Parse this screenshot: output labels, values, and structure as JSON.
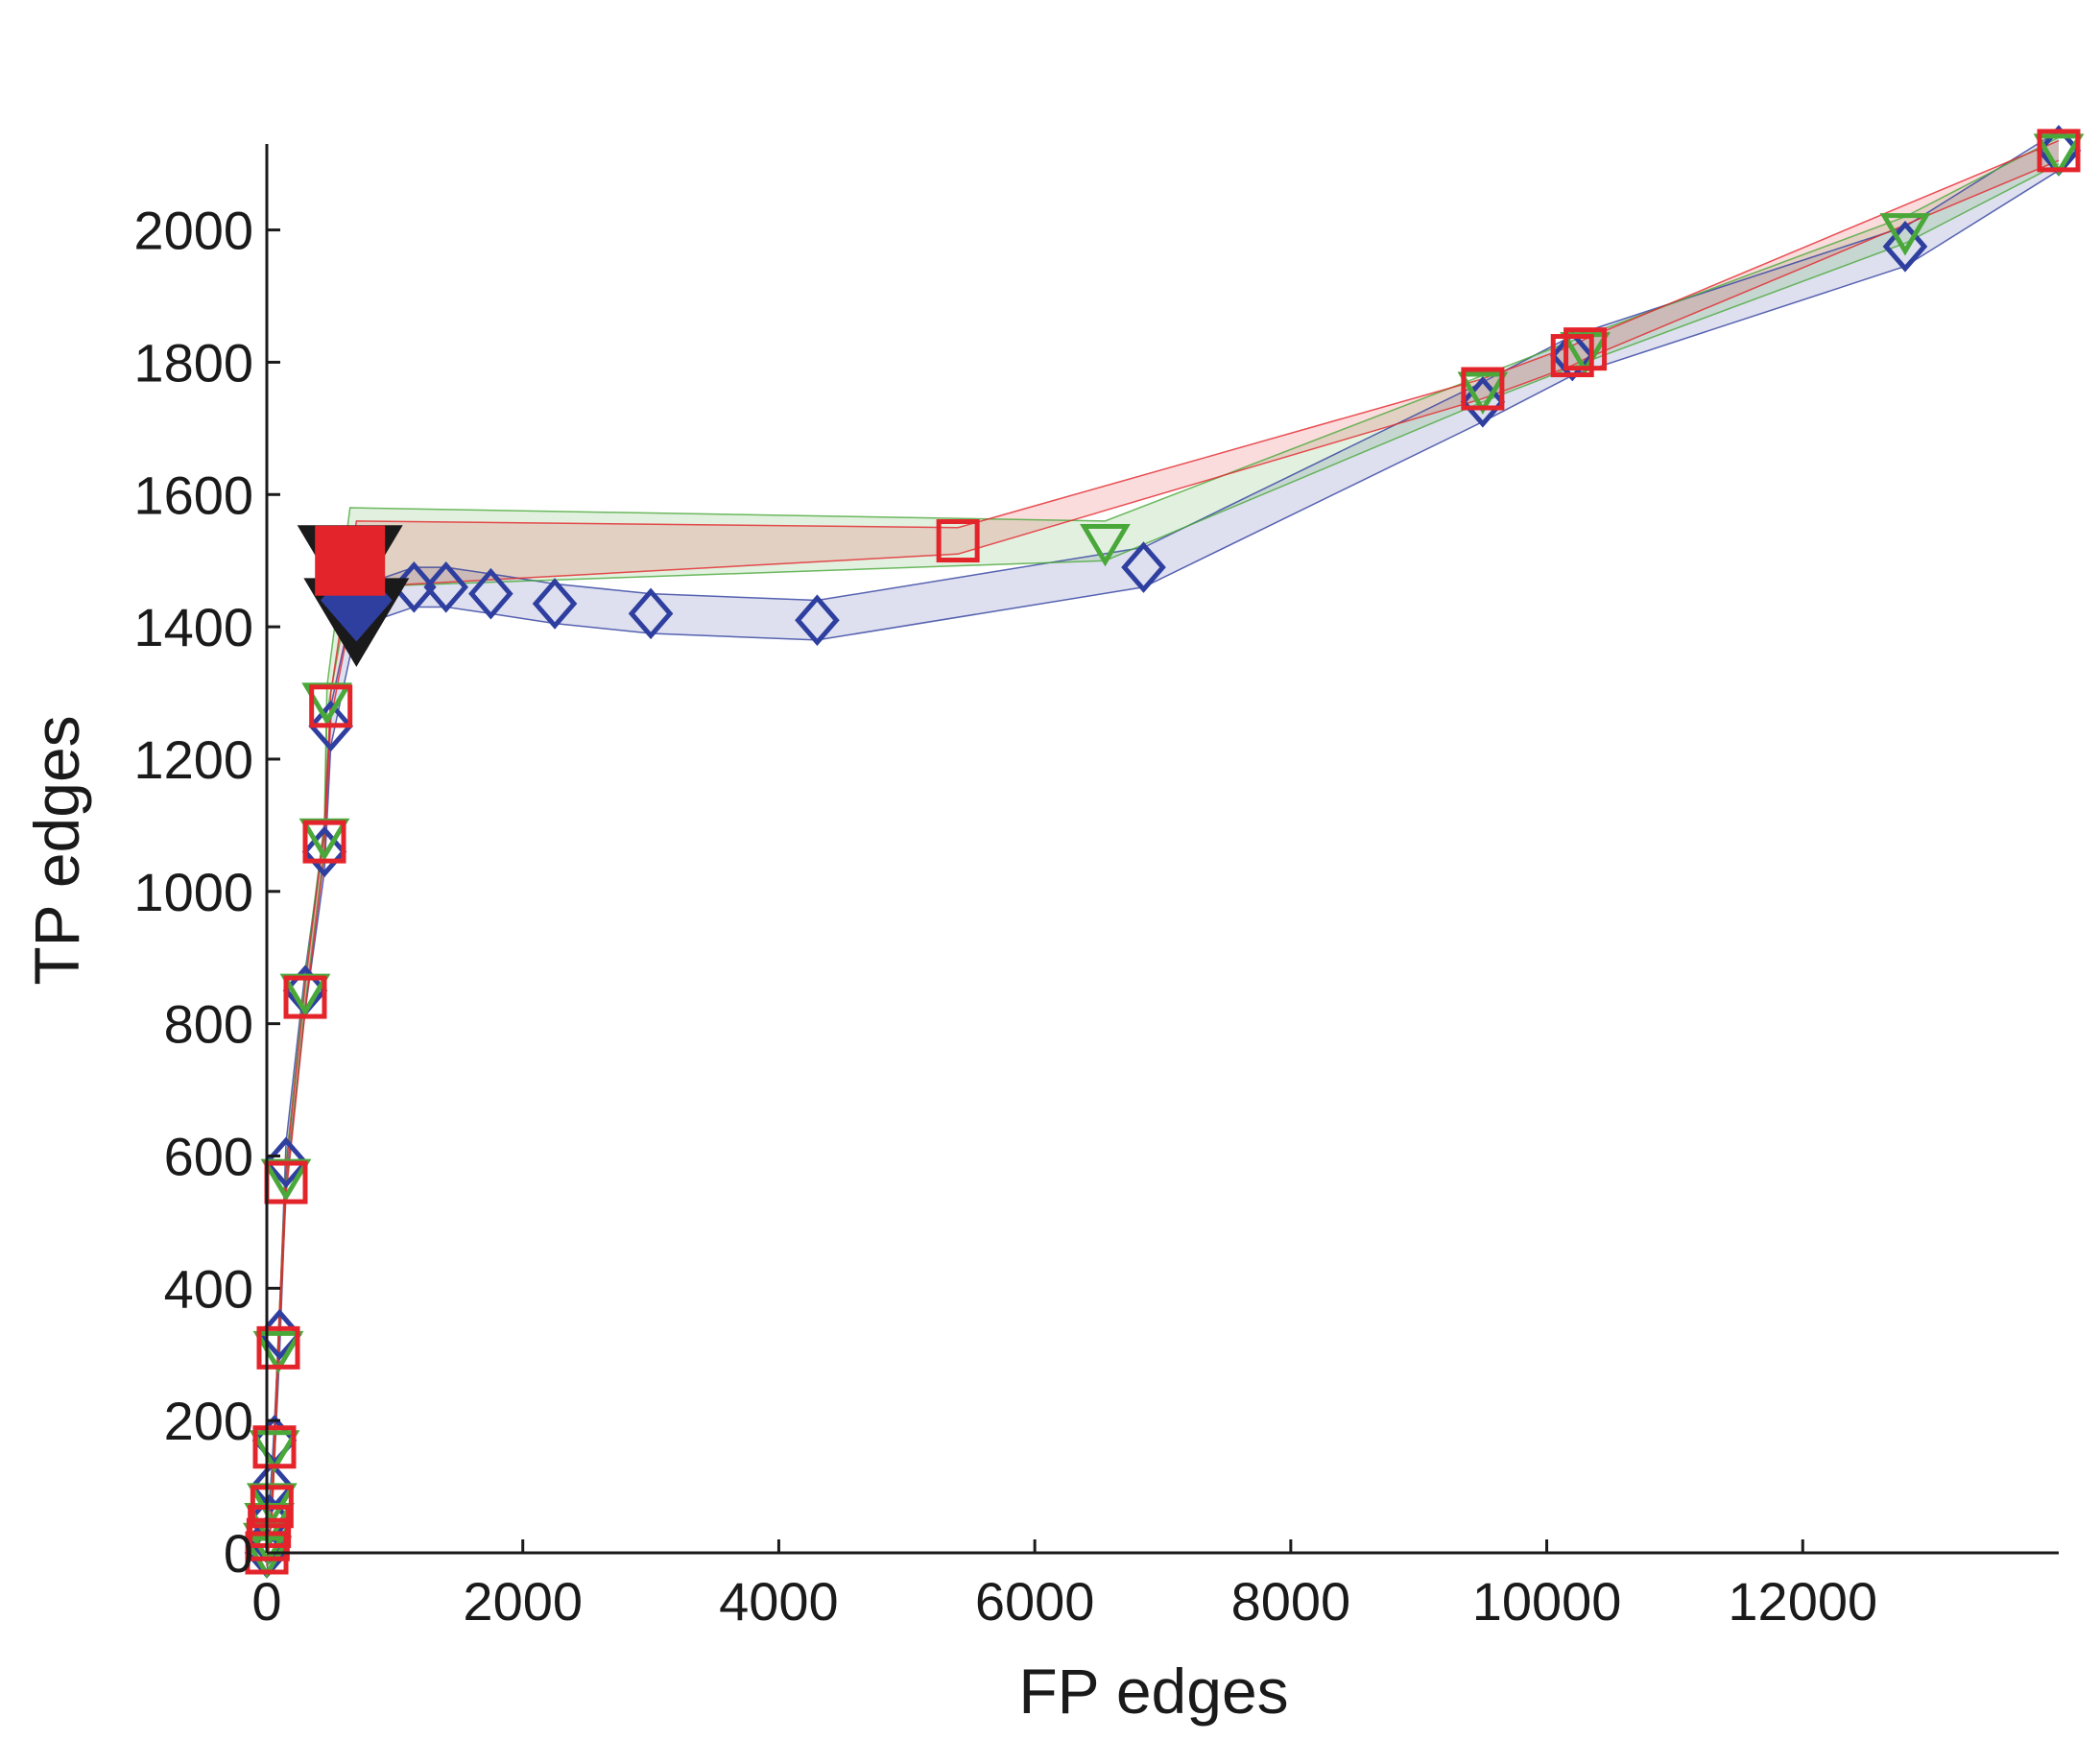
{
  "chart_data": {
    "type": "line",
    "title": "",
    "xlabel": "FP edges",
    "ylabel": "TP edges",
    "xlim": [
      0,
      14000
    ],
    "ylim": [
      0,
      2130
    ],
    "xticks": [
      0,
      2000,
      4000,
      6000,
      8000,
      10000,
      12000
    ],
    "yticks": [
      0,
      200,
      400,
      600,
      800,
      1000,
      1200,
      1400,
      1600,
      1800,
      2000
    ],
    "grid": false,
    "legend": "none",
    "series": [
      {
        "marker": "diamond",
        "color": "#2f3f9f",
        "x": [
          0,
          10,
          20,
          40,
          60,
          100,
          150,
          300,
          450,
          500,
          700,
          1150,
          1400,
          1750,
          2250,
          3000,
          4300,
          6850,
          9500,
          10200,
          12800,
          14000
        ],
        "y": [
          0,
          20,
          50,
          100,
          170,
          330,
          590,
          850,
          1060,
          1250,
          1430,
          1460,
          1460,
          1450,
          1435,
          1420,
          1410,
          1490,
          1740,
          1810,
          1975,
          2120
        ],
        "band": [
          30,
          30,
          30,
          30,
          30,
          30,
          30,
          30,
          30,
          30,
          30,
          30,
          30,
          30,
          30,
          30,
          30,
          30,
          30,
          30,
          30,
          30
        ]
      },
      {
        "marker": "triangle-down",
        "color": "#4aa83a",
        "x": [
          0,
          10,
          20,
          40,
          60,
          90,
          150,
          300,
          450,
          470,
          650,
          6550,
          9500,
          10300,
          12800,
          14000
        ],
        "y": [
          0,
          20,
          50,
          80,
          160,
          310,
          570,
          850,
          1085,
          1290,
          1520,
          1530,
          1760,
          1820,
          2000,
          2120
        ],
        "band": [
          20,
          20,
          20,
          20,
          20,
          20,
          20,
          20,
          20,
          20,
          60,
          30,
          20,
          20,
          20,
          20
        ]
      },
      {
        "marker": "square",
        "color": "#e4242b",
        "x": [
          0,
          10,
          20,
          40,
          60,
          90,
          150,
          300,
          450,
          500,
          700,
          5400,
          9500,
          10200,
          10300,
          14000
        ],
        "y": [
          0,
          20,
          40,
          70,
          160,
          310,
          560,
          840,
          1075,
          1280,
          1510,
          1530,
          1760,
          1810,
          1820,
          2120
        ],
        "band": [
          20,
          20,
          20,
          20,
          20,
          20,
          20,
          20,
          20,
          20,
          50,
          20,
          15,
          15,
          15,
          15
        ]
      }
    ],
    "highlight": [
      {
        "marker": "triangle-down",
        "color": "#1a1a1a",
        "x": 650,
        "y": 1500
      },
      {
        "marker": "triangle-down",
        "color": "#1a1a1a",
        "x": 700,
        "y": 1420
      },
      {
        "marker": "diamond-filled",
        "color": "#2f3f9f",
        "x": 700,
        "y": 1440
      },
      {
        "marker": "square-filled",
        "color": "#e4242b",
        "x": 650,
        "y": 1500
      }
    ]
  }
}
